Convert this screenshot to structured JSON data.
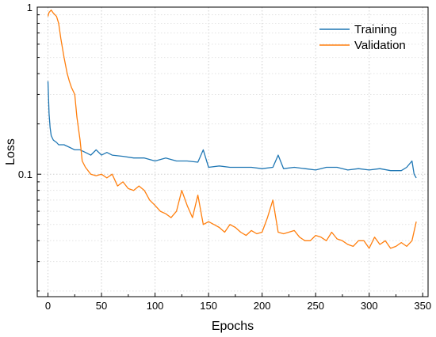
{
  "chart_data": {
    "type": "line",
    "xlabel": "Epochs",
    "ylabel": "Loss",
    "xlim": [
      -10,
      355
    ],
    "ylim": [
      0.0185,
      1.0
    ],
    "y_scale": "log",
    "grid": true,
    "legend_position": "top-right",
    "x_ticks": [
      0,
      50,
      100,
      150,
      200,
      250,
      300,
      350
    ],
    "x_tick_labels": [
      "0",
      "50",
      "100",
      "150",
      "200",
      "250",
      "300",
      "350"
    ],
    "y_ticks": [
      1,
      0.1
    ],
    "y_tick_labels": [
      "1",
      "0.1"
    ],
    "y_minor_ticks": [
      0.02,
      0.03,
      0.04,
      0.05,
      0.06,
      0.07,
      0.08,
      0.09,
      0.2,
      0.3,
      0.4,
      0.5,
      0.6,
      0.7,
      0.8,
      0.9
    ],
    "series": [
      {
        "name": "Training",
        "color": "#1f77b4",
        "x": [
          0,
          1,
          2,
          3,
          5,
          8,
          10,
          15,
          20,
          25,
          30,
          35,
          40,
          45,
          50,
          55,
          60,
          70,
          80,
          90,
          100,
          110,
          120,
          130,
          140,
          145,
          150,
          160,
          170,
          180,
          190,
          200,
          210,
          215,
          220,
          230,
          240,
          250,
          260,
          270,
          280,
          290,
          300,
          310,
          320,
          330,
          335,
          340,
          342,
          344
        ],
        "y": [
          0.36,
          0.23,
          0.19,
          0.17,
          0.16,
          0.155,
          0.15,
          0.15,
          0.145,
          0.14,
          0.14,
          0.135,
          0.13,
          0.14,
          0.13,
          0.135,
          0.13,
          0.128,
          0.125,
          0.125,
          0.12,
          0.125,
          0.12,
          0.12,
          0.118,
          0.14,
          0.11,
          0.112,
          0.11,
          0.11,
          0.11,
          0.108,
          0.11,
          0.13,
          0.108,
          0.11,
          0.108,
          0.106,
          0.11,
          0.11,
          0.106,
          0.108,
          0.106,
          0.108,
          0.105,
          0.105,
          0.11,
          0.12,
          0.1,
          0.095
        ]
      },
      {
        "name": "Validation",
        "color": "#ff7f0e",
        "x": [
          0,
          1,
          3,
          5,
          8,
          10,
          12,
          15,
          18,
          20,
          22,
          25,
          27,
          30,
          32,
          35,
          40,
          45,
          50,
          55,
          60,
          65,
          70,
          75,
          80,
          85,
          90,
          95,
          100,
          105,
          110,
          115,
          120,
          125,
          130,
          135,
          140,
          145,
          150,
          155,
          160,
          165,
          170,
          175,
          180,
          185,
          190,
          195,
          200,
          205,
          210,
          215,
          220,
          225,
          230,
          235,
          240,
          245,
          250,
          255,
          260,
          265,
          270,
          275,
          280,
          285,
          290,
          295,
          300,
          305,
          310,
          315,
          320,
          325,
          330,
          335,
          340,
          344
        ],
        "y": [
          0.88,
          0.93,
          0.96,
          0.92,
          0.88,
          0.8,
          0.65,
          0.5,
          0.4,
          0.36,
          0.33,
          0.3,
          0.22,
          0.16,
          0.12,
          0.11,
          0.1,
          0.098,
          0.1,
          0.095,
          0.1,
          0.085,
          0.09,
          0.082,
          0.08,
          0.085,
          0.08,
          0.07,
          0.065,
          0.06,
          0.058,
          0.055,
          0.06,
          0.08,
          0.065,
          0.055,
          0.075,
          0.05,
          0.052,
          0.05,
          0.048,
          0.045,
          0.05,
          0.048,
          0.045,
          0.043,
          0.046,
          0.044,
          0.045,
          0.055,
          0.07,
          0.045,
          0.044,
          0.045,
          0.046,
          0.042,
          0.04,
          0.04,
          0.043,
          0.042,
          0.04,
          0.045,
          0.041,
          0.04,
          0.038,
          0.037,
          0.04,
          0.04,
          0.036,
          0.042,
          0.038,
          0.04,
          0.036,
          0.037,
          0.039,
          0.037,
          0.04,
          0.052
        ]
      }
    ]
  }
}
